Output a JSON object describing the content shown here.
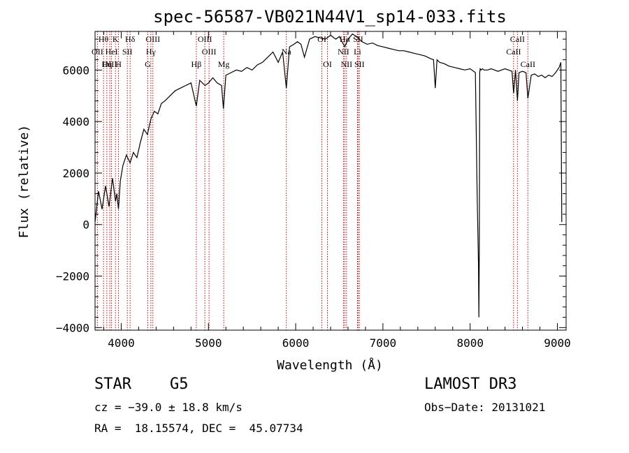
{
  "chart_data": {
    "type": "line",
    "title": "spec-56587-VB021N44V1_sp14-033.fits",
    "xlabel": "Wavelength (Å)",
    "ylabel": "Flux (relative)",
    "xlim": [
      3700,
      9100
    ],
    "ylim": [
      -4100,
      7500
    ],
    "xticks": [
      4000,
      5000,
      6000,
      7000,
      8000,
      9000
    ],
    "yticks": [
      -4000,
      -2000,
      0,
      2000,
      4000,
      6000
    ],
    "xtick_labels": [
      "4000",
      "5000",
      "6000",
      "7000",
      "8000",
      "9000"
    ],
    "ytick_labels": [
      "−4000",
      "−2000",
      "0",
      "2000",
      "4000",
      "6000"
    ],
    "grid": false,
    "series": [
      {
        "name": "flux",
        "x": [
          3700,
          3740,
          3780,
          3820,
          3860,
          3900,
          3935,
          3950,
          3968,
          3990,
          4020,
          4060,
          4101,
          4140,
          4180,
          4220,
          4260,
          4300,
          4340,
          4380,
          4420,
          4460,
          4500,
          4560,
          4620,
          4680,
          4740,
          4800,
          4861,
          4900,
          4960,
          5000,
          5050,
          5100,
          5150,
          5172,
          5200,
          5260,
          5320,
          5380,
          5440,
          5500,
          5560,
          5620,
          5680,
          5740,
          5800,
          5850,
          5893,
          5930,
          5980,
          6020,
          6060,
          6100,
          6160,
          6220,
          6280,
          6340,
          6400,
          6460,
          6500,
          6563,
          6600,
          6650,
          6700,
          6760,
          6820,
          6880,
          6940,
          7000,
          7060,
          7120,
          7180,
          7240,
          7300,
          7360,
          7420,
          7480,
          7540,
          7580,
          7600,
          7620,
          7650,
          7700,
          7760,
          7820,
          7880,
          7940,
          8000,
          8060,
          8080,
          8095,
          8100,
          8105,
          8110,
          8115,
          8125,
          8140,
          8160,
          8200,
          8240,
          8280,
          8320,
          8360,
          8400,
          8440,
          8480,
          8498,
          8520,
          8542,
          8560,
          8600,
          8640,
          8662,
          8700,
          8740,
          8780,
          8820,
          8860,
          8900,
          8940,
          8980,
          9020,
          9040,
          9050
        ],
        "values": [
          100,
          1300,
          600,
          1500,
          700,
          1800,
          900,
          1200,
          600,
          1700,
          2300,
          2700,
          2400,
          2800,
          2600,
          3200,
          3700,
          3500,
          4100,
          4400,
          4300,
          4700,
          4800,
          5000,
          5200,
          5300,
          5400,
          5500,
          4600,
          5600,
          5400,
          5500,
          5700,
          5500,
          5400,
          4500,
          5800,
          5900,
          6000,
          5950,
          6100,
          6000,
          6200,
          6300,
          6500,
          6700,
          6300,
          6700,
          5300,
          6900,
          7000,
          7100,
          7000,
          6500,
          7200,
          7300,
          7250,
          7200,
          7350,
          7200,
          7300,
          6900,
          7200,
          7400,
          7300,
          7100,
          7000,
          7050,
          6950,
          6900,
          6850,
          6800,
          6750,
          6750,
          6700,
          6650,
          6600,
          6550,
          6450,
          6400,
          5300,
          6400,
          6300,
          6250,
          6150,
          6100,
          6050,
          6000,
          6050,
          5900,
          1200,
          -1500,
          -3600,
          -1000,
          5900,
          6050,
          6000,
          6050,
          6000,
          6000,
          6050,
          6000,
          5950,
          6000,
          6050,
          6000,
          5950,
          5100,
          6000,
          4800,
          5900,
          5950,
          5900,
          4900,
          5800,
          5850,
          5750,
          5800,
          5700,
          5800,
          5750,
          5900,
          6100,
          6300,
          100
        ]
      }
    ],
    "lines": [
      {
        "label": "Hθ",
        "x": 3797,
        "row": 0
      },
      {
        "label": "OII",
        "x": 3727,
        "row": 1
      },
      {
        "label": "OIII",
        "x": 3869,
        "row": 2
      },
      {
        "label": "Hη",
        "x": 3835,
        "row": 2
      },
      {
        "label": "K",
        "x": 3934,
        "row": 0
      },
      {
        "label": "HeI",
        "x": 3889,
        "row": 1
      },
      {
        "label": "SII",
        "x": 4070,
        "row": 1
      },
      {
        "label": "H",
        "x": 3969,
        "row": 2
      },
      {
        "label": "Hδ",
        "x": 4102,
        "row": 0
      },
      {
        "label": "OIII",
        "x": 4363,
        "row": 0
      },
      {
        "label": "Hγ",
        "x": 4340,
        "row": 1
      },
      {
        "label": "G",
        "x": 4305,
        "row": 2
      },
      {
        "label": "Hβ",
        "x": 4861,
        "row": 2
      },
      {
        "label": "OIII",
        "x": 4959,
        "row": 0
      },
      {
        "label": "OIII",
        "x": 5007,
        "row": 1
      },
      {
        "label": "Mg",
        "x": 5175,
        "row": 2
      },
      {
        "label": "Na",
        "x": 5893,
        "row": 1
      },
      {
        "label": "OI",
        "x": 6300,
        "row": 0
      },
      {
        "label": "OI",
        "x": 6364,
        "row": 2
      },
      {
        "label": "Hα",
        "x": 6563,
        "row": 0
      },
      {
        "label": "NII",
        "x": 6548,
        "row": 1
      },
      {
        "label": "NII",
        "x": 6583,
        "row": 2
      },
      {
        "label": "SII",
        "x": 6716,
        "row": 0
      },
      {
        "label": "Li",
        "x": 6708,
        "row": 1
      },
      {
        "label": "SII",
        "x": 6731,
        "row": 2
      },
      {
        "label": "CaII",
        "x": 8542,
        "row": 0
      },
      {
        "label": "CaII",
        "x": 8498,
        "row": 1
      },
      {
        "label": "CaII",
        "x": 8662,
        "row": 2
      }
    ]
  },
  "info": {
    "object_class": "STAR",
    "subclass": "G5",
    "survey": "LAMOST DR3",
    "redshift": "cz = −39.0 ± 18.8 km/s",
    "obs_date": "Obs−Date: 20131021",
    "coords": "RA =  18.15574, DEC =  45.07734"
  }
}
